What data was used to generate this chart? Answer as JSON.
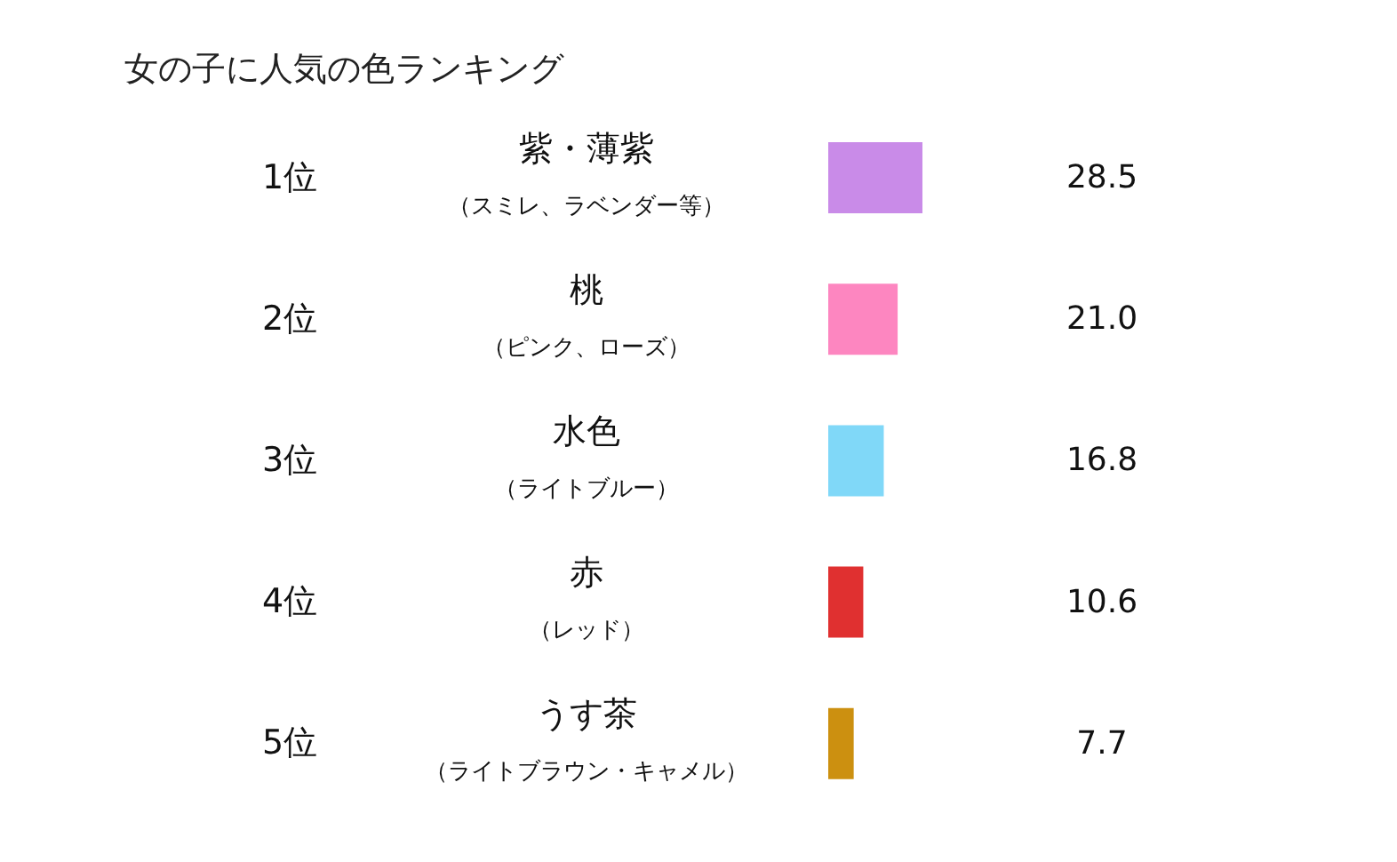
{
  "chart_data": {
    "type": "bar",
    "orientation": "horizontal",
    "title": "女の子に人気の色ランキング",
    "categories": [
      "紫・薄紫（スミレ、ラベンダー等）",
      "桃（ピンク、ローズ）",
      "水色（ライトブルー）",
      "赤（レッド）",
      "うす茶（ライトブラウン・キャメル）"
    ],
    "values": [
      28.5,
      21.0,
      16.8,
      10.6,
      7.7
    ],
    "colors": [
      "#c98be8",
      "#fd86c0",
      "#80d8f8",
      "#e03030",
      "#cc9010"
    ],
    "value_labels": [
      "28.5",
      "21.0",
      "16.8",
      "10.6",
      "7.7"
    ],
    "annotations": [
      "1位",
      "2位",
      "3位",
      "4位",
      "5位"
    ],
    "grid": false,
    "legend": false
  }
}
